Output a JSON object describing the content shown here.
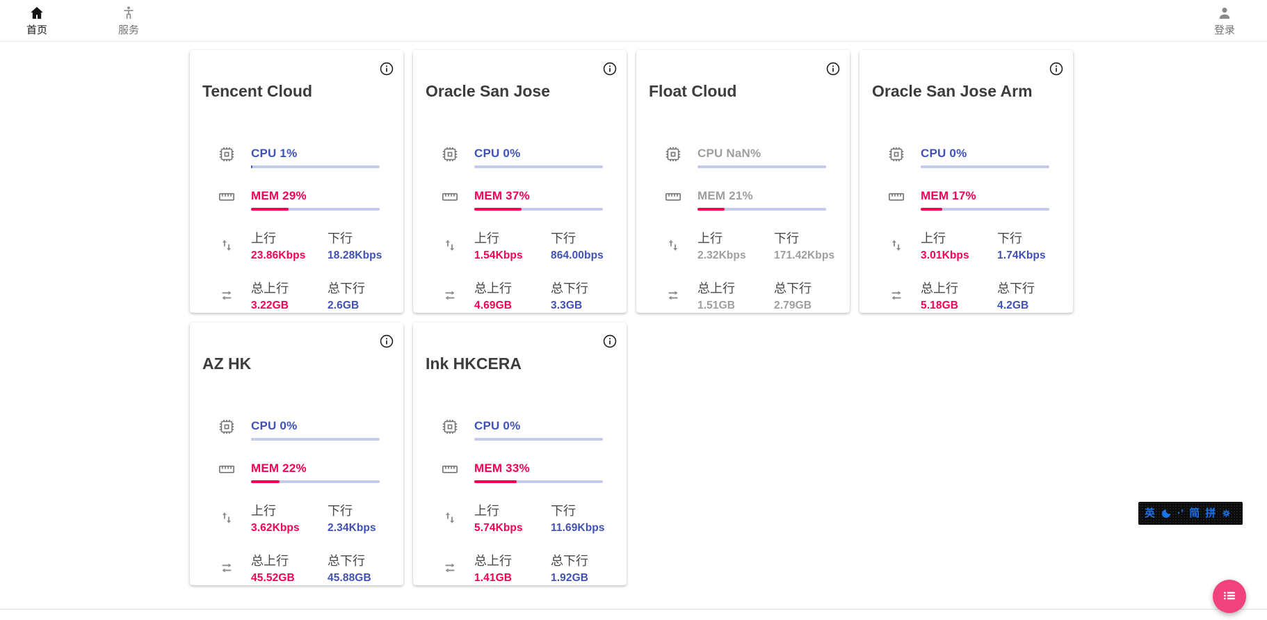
{
  "nav": {
    "home": "首页",
    "services": "服务",
    "login": "登录"
  },
  "stat_labels": {
    "up": "上行",
    "down": "下行",
    "total_up": "总上行",
    "total_down": "总下行"
  },
  "servers": [
    {
      "name": "Tencent Cloud",
      "cpu_label": "CPU 1%",
      "cpu_pct": 1,
      "mem_label": "MEM 29%",
      "mem_pct": 29,
      "up": "23.86Kbps",
      "down": "18.28Kbps",
      "total_up": "3.22GB",
      "total_down": "2.6GB",
      "muted": false
    },
    {
      "name": "Oracle San Jose",
      "cpu_label": "CPU 0%",
      "cpu_pct": 0,
      "mem_label": "MEM 37%",
      "mem_pct": 37,
      "up": "1.54Kbps",
      "down": "864.00bps",
      "total_up": "4.69GB",
      "total_down": "3.3GB",
      "muted": false
    },
    {
      "name": "Float Cloud",
      "cpu_label": "CPU NaN%",
      "cpu_pct": 0,
      "mem_label": "MEM 21%",
      "mem_pct": 21,
      "up": "2.32Kbps",
      "down": "171.42Kbps",
      "total_up": "1.51GB",
      "total_down": "2.79GB",
      "muted": true
    },
    {
      "name": "Oracle San Jose Arm",
      "cpu_label": "CPU 0%",
      "cpu_pct": 0,
      "mem_label": "MEM 17%",
      "mem_pct": 17,
      "up": "3.01Kbps",
      "down": "1.74Kbps",
      "total_up": "5.18GB",
      "total_down": "4.2GB",
      "muted": false
    },
    {
      "name": "AZ HK",
      "cpu_label": "CPU 0%",
      "cpu_pct": 0,
      "mem_label": "MEM 22%",
      "mem_pct": 22,
      "up": "3.62Kbps",
      "down": "2.34Kbps",
      "total_up": "45.52GB",
      "total_down": "45.88GB",
      "muted": false
    },
    {
      "name": "Ink HKCERA",
      "cpu_label": "CPU 0%",
      "cpu_pct": 0,
      "mem_label": "MEM 33%",
      "mem_pct": 33,
      "up": "5.74Kbps",
      "down": "11.69Kbps",
      "total_up": "1.41GB",
      "total_down": "1.92GB",
      "muted": false
    }
  ],
  "ime_bar": {
    "english": "英",
    "punctuation": "·’",
    "simplified": "简",
    "pinyin": "拼"
  },
  "colors": {
    "accent_blue": "#3f51b5",
    "accent_pink": "#f50057",
    "muted_gray": "#9e9e9e",
    "bar_track": "#c5cae9",
    "fab_pink": "#f0437b",
    "ime_blue": "#1a73e8"
  }
}
